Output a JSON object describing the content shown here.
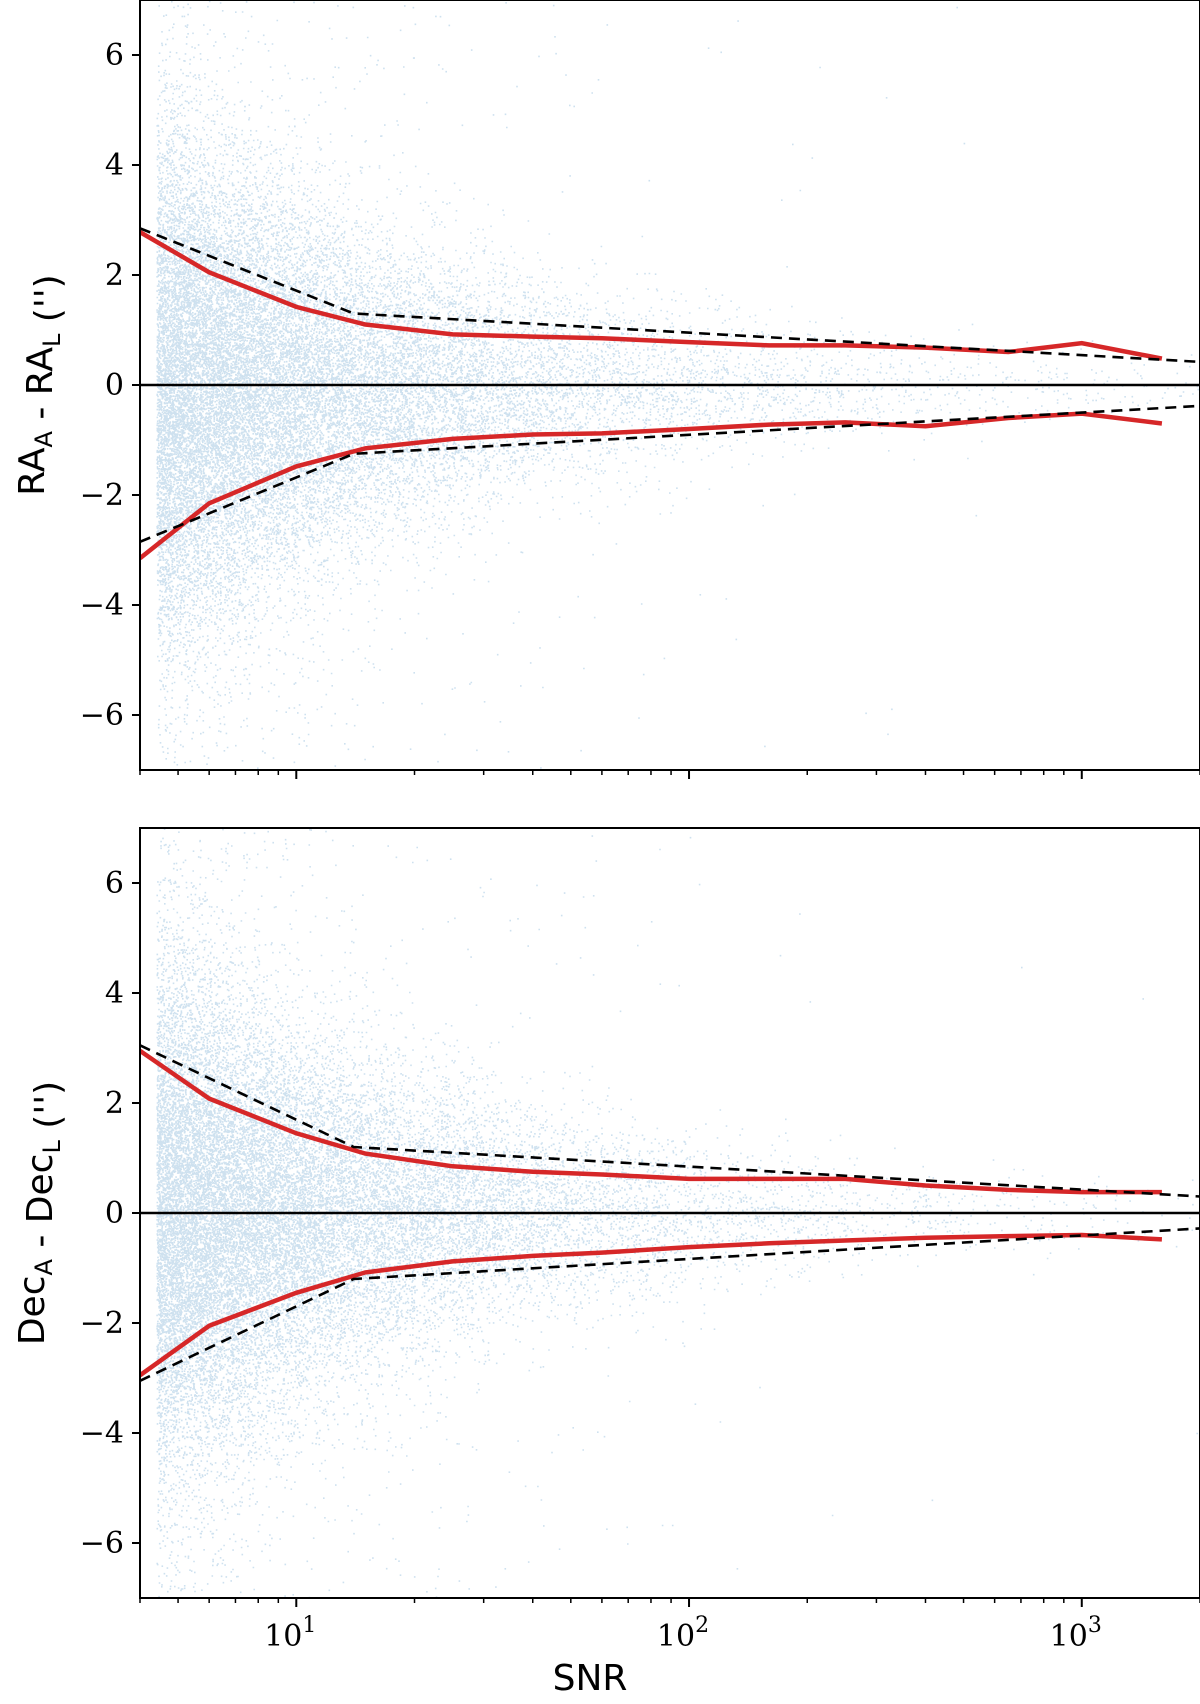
{
  "chart_data": [
    {
      "type": "scatter",
      "panel": "top",
      "xlabel": "SNR",
      "ylabel": {
        "main": "RA",
        "sub1": "A",
        "mid": " - RA",
        "sub2": "L",
        "unit": " ('')"
      },
      "xscale": "log",
      "xlim": [
        4,
        2000
      ],
      "ylim": [
        -7,
        7
      ],
      "xticks": [
        10,
        100,
        1000
      ],
      "xtick_labels": [
        {
          "base": "10",
          "exp": "1"
        },
        {
          "base": "10",
          "exp": "2"
        },
        {
          "base": "10",
          "exp": "3"
        }
      ],
      "xtick_labels_visible": false,
      "yticks": [
        -6,
        -4,
        -2,
        0,
        2,
        4,
        6
      ],
      "ytick_labels": [
        "−6",
        "−4",
        "−2",
        "0",
        "2",
        "4",
        "6"
      ],
      "hline": 0,
      "grid": false,
      "colors": {
        "scatter": "#1f77b4",
        "red": "#d62728",
        "dashed": "#000000",
        "zero": "#000000"
      },
      "series": [
        {
          "style": "solid-red",
          "x": [
            4,
            6,
            10,
            15,
            25,
            40,
            60,
            100,
            160,
            250,
            400,
            650,
            1000,
            1600
          ],
          "y": [
            2.78,
            2.05,
            1.42,
            1.1,
            0.92,
            0.88,
            0.85,
            0.78,
            0.72,
            0.72,
            0.68,
            0.6,
            0.76,
            0.48
          ]
        },
        {
          "style": "solid-red",
          "x": [
            4,
            6,
            10,
            15,
            25,
            40,
            60,
            100,
            160,
            250,
            400,
            650,
            1000,
            1600
          ],
          "y": [
            -3.15,
            -2.15,
            -1.48,
            -1.15,
            -0.98,
            -0.9,
            -0.88,
            -0.8,
            -0.72,
            -0.68,
            -0.75,
            -0.6,
            -0.52,
            -0.7
          ]
        },
        {
          "style": "dashed-black",
          "x": [
            4,
            14,
            2000
          ],
          "y": [
            2.85,
            1.3,
            0.42
          ]
        },
        {
          "style": "dashed-black",
          "x": [
            4,
            14,
            2000
          ],
          "y": [
            -2.85,
            -1.25,
            -0.38
          ]
        }
      ]
    },
    {
      "type": "scatter",
      "panel": "bottom",
      "xlabel": "SNR",
      "ylabel": {
        "main": "Dec",
        "sub1": "A",
        "mid": " - Dec",
        "sub2": "L",
        "unit": " ('')"
      },
      "xscale": "log",
      "xlim": [
        4,
        2000
      ],
      "ylim": [
        -7,
        7
      ],
      "xticks": [
        10,
        100,
        1000
      ],
      "xtick_labels": [
        {
          "base": "10",
          "exp": "1"
        },
        {
          "base": "10",
          "exp": "2"
        },
        {
          "base": "10",
          "exp": "3"
        }
      ],
      "xtick_labels_visible": true,
      "yticks": [
        -6,
        -4,
        -2,
        0,
        2,
        4,
        6
      ],
      "ytick_labels": [
        "−6",
        "−4",
        "−2",
        "0",
        "2",
        "4",
        "6"
      ],
      "hline": 0,
      "grid": false,
      "colors": {
        "scatter": "#1f77b4",
        "red": "#d62728",
        "dashed": "#000000",
        "zero": "#000000"
      },
      "series": [
        {
          "style": "solid-red",
          "x": [
            4,
            6,
            10,
            15,
            25,
            40,
            60,
            100,
            160,
            250,
            400,
            650,
            1000,
            1600
          ],
          "y": [
            2.95,
            2.08,
            1.45,
            1.08,
            0.85,
            0.75,
            0.7,
            0.62,
            0.62,
            0.62,
            0.5,
            0.42,
            0.38,
            0.38
          ]
        },
        {
          "style": "solid-red",
          "x": [
            4,
            6,
            10,
            15,
            25,
            40,
            60,
            100,
            160,
            250,
            400,
            650,
            1000,
            1600
          ],
          "y": [
            -2.95,
            -2.05,
            -1.45,
            -1.08,
            -0.88,
            -0.78,
            -0.72,
            -0.62,
            -0.55,
            -0.5,
            -0.45,
            -0.42,
            -0.4,
            -0.48
          ]
        },
        {
          "style": "dashed-black",
          "x": [
            4,
            14,
            2000
          ],
          "y": [
            3.05,
            1.2,
            0.3
          ]
        },
        {
          "style": "dashed-black",
          "x": [
            4,
            14,
            2000
          ],
          "y": [
            -3.05,
            -1.2,
            -0.28
          ]
        }
      ]
    }
  ]
}
